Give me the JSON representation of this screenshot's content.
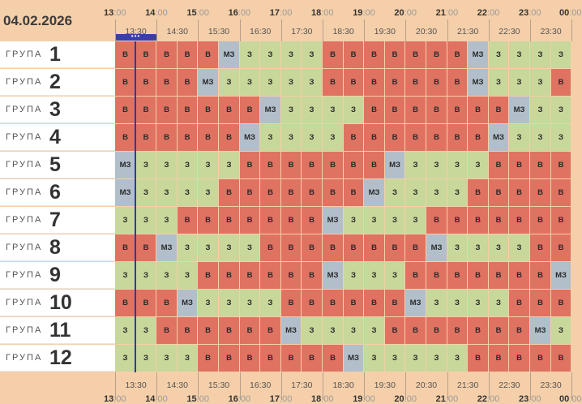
{
  "date": "04.02.2026",
  "hours": [
    "13",
    "14",
    "15",
    "16",
    "17",
    "18",
    "19",
    "20",
    "21",
    "22",
    "23",
    "00"
  ],
  "hours_minutes": ":00",
  "half_hours": [
    "13:30",
    "14:30",
    "15:30",
    "16:30",
    "17:30",
    "18:30",
    "19:30",
    "20:30",
    "21:30",
    "22:30",
    "23:30"
  ],
  "now_indicator": "•••",
  "group_word": "ГРУПА",
  "colors": {
    "busy": "#e07262",
    "free": "#c8d79a",
    "mz": "#b2bfcb",
    "now": "#3a3fa8"
  },
  "groups": [
    {
      "number": "1",
      "cells": [
        "В",
        "В",
        "В",
        "В",
        "В",
        "МЗ",
        "З",
        "З",
        "З",
        "З",
        "В",
        "В",
        "В",
        "В",
        "В",
        "В",
        "В",
        "МЗ",
        "З",
        "З",
        "З",
        "З"
      ]
    },
    {
      "number": "2",
      "cells": [
        "В",
        "В",
        "В",
        "В",
        "МЗ",
        "З",
        "З",
        "З",
        "З",
        "З",
        "В",
        "В",
        "В",
        "В",
        "В",
        "В",
        "В",
        "МЗ",
        "З",
        "З",
        "З",
        "В"
      ]
    },
    {
      "number": "3",
      "cells": [
        "В",
        "В",
        "В",
        "В",
        "В",
        "В",
        "В",
        "МЗ",
        "З",
        "З",
        "З",
        "З",
        "В",
        "В",
        "В",
        "В",
        "В",
        "В",
        "В",
        "МЗ",
        "З",
        "З"
      ]
    },
    {
      "number": "4",
      "cells": [
        "В",
        "В",
        "В",
        "В",
        "В",
        "В",
        "МЗ",
        "З",
        "З",
        "З",
        "З",
        "В",
        "В",
        "В",
        "В",
        "В",
        "В",
        "В",
        "МЗ",
        "З",
        "З",
        "З"
      ]
    },
    {
      "number": "5",
      "cells": [
        "МЗ",
        "З",
        "З",
        "З",
        "З",
        "З",
        "В",
        "В",
        "В",
        "В",
        "В",
        "В",
        "В",
        "МЗ",
        "З",
        "З",
        "З",
        "З",
        "В",
        "В",
        "В",
        "В"
      ]
    },
    {
      "number": "6",
      "cells": [
        "МЗ",
        "З",
        "З",
        "З",
        "З",
        "В",
        "В",
        "В",
        "В",
        "В",
        "В",
        "В",
        "МЗ",
        "З",
        "З",
        "З",
        "З",
        "В",
        "В",
        "В",
        "В",
        "В"
      ]
    },
    {
      "number": "7",
      "cells": [
        "З",
        "З",
        "З",
        "В",
        "В",
        "В",
        "В",
        "В",
        "В",
        "В",
        "МЗ",
        "З",
        "З",
        "З",
        "З",
        "В",
        "В",
        "В",
        "В",
        "В",
        "В",
        "В"
      ]
    },
    {
      "number": "8",
      "cells": [
        "В",
        "В",
        "МЗ",
        "З",
        "З",
        "З",
        "З",
        "В",
        "В",
        "В",
        "В",
        "В",
        "В",
        "В",
        "В",
        "МЗ",
        "З",
        "З",
        "З",
        "З",
        "В",
        "В"
      ]
    },
    {
      "number": "9",
      "cells": [
        "З",
        "З",
        "З",
        "З",
        "В",
        "В",
        "В",
        "В",
        "В",
        "В",
        "МЗ",
        "З",
        "З",
        "З",
        "В",
        "В",
        "В",
        "В",
        "В",
        "В",
        "В",
        "МЗ"
      ]
    },
    {
      "number": "10",
      "cells": [
        "В",
        "В",
        "В",
        "МЗ",
        "З",
        "З",
        "З",
        "З",
        "В",
        "В",
        "В",
        "В",
        "В",
        "В",
        "МЗ",
        "З",
        "З",
        "З",
        "З",
        "В",
        "В",
        "В"
      ]
    },
    {
      "number": "11",
      "cells": [
        "З",
        "З",
        "В",
        "В",
        "В",
        "В",
        "В",
        "В",
        "МЗ",
        "З",
        "З",
        "З",
        "З",
        "В",
        "В",
        "В",
        "В",
        "В",
        "В",
        "В",
        "МЗ",
        "З"
      ]
    },
    {
      "number": "12",
      "cells": [
        "З",
        "З",
        "З",
        "З",
        "В",
        "В",
        "В",
        "В",
        "В",
        "В",
        "В",
        "МЗ",
        "З",
        "З",
        "З",
        "З",
        "З",
        "В",
        "В",
        "В",
        "В",
        "В"
      ]
    }
  ]
}
